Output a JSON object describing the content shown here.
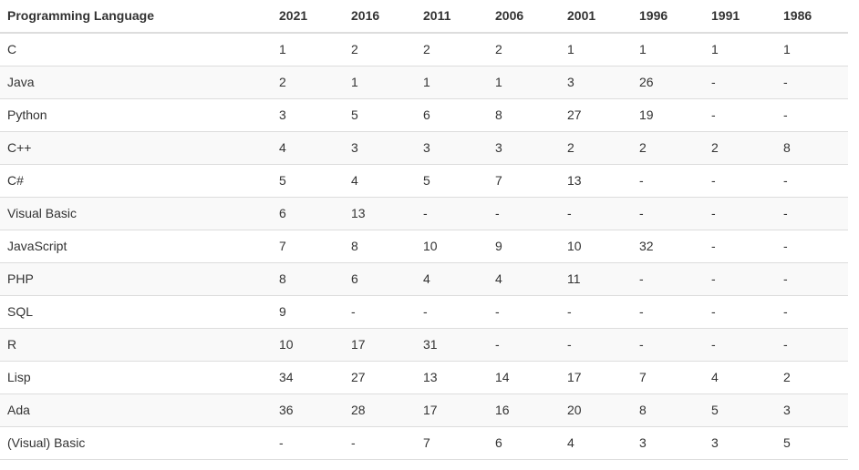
{
  "table": {
    "header": {
      "language_column": "Programming Language",
      "year_columns": [
        "2021",
        "2016",
        "2011",
        "2006",
        "2001",
        "1996",
        "1991",
        "1986"
      ]
    },
    "rows": [
      {
        "language": "C",
        "ranks": [
          "1",
          "2",
          "2",
          "2",
          "1",
          "1",
          "1",
          "1"
        ]
      },
      {
        "language": "Java",
        "ranks": [
          "2",
          "1",
          "1",
          "1",
          "3",
          "26",
          "-",
          "-"
        ]
      },
      {
        "language": "Python",
        "ranks": [
          "3",
          "5",
          "6",
          "8",
          "27",
          "19",
          "-",
          "-"
        ]
      },
      {
        "language": "C++",
        "ranks": [
          "4",
          "3",
          "3",
          "3",
          "2",
          "2",
          "2",
          "8"
        ]
      },
      {
        "language": "C#",
        "ranks": [
          "5",
          "4",
          "5",
          "7",
          "13",
          "-",
          "-",
          "-"
        ]
      },
      {
        "language": "Visual Basic",
        "ranks": [
          "6",
          "13",
          "-",
          "-",
          "-",
          "-",
          "-",
          "-"
        ]
      },
      {
        "language": "JavaScript",
        "ranks": [
          "7",
          "8",
          "10",
          "9",
          "10",
          "32",
          "-",
          "-"
        ]
      },
      {
        "language": "PHP",
        "ranks": [
          "8",
          "6",
          "4",
          "4",
          "11",
          "-",
          "-",
          "-"
        ]
      },
      {
        "language": "SQL",
        "ranks": [
          "9",
          "-",
          "-",
          "-",
          "-",
          "-",
          "-",
          "-"
        ]
      },
      {
        "language": "R",
        "ranks": [
          "10",
          "17",
          "31",
          "-",
          "-",
          "-",
          "-",
          "-"
        ]
      },
      {
        "language": "Lisp",
        "ranks": [
          "34",
          "27",
          "13",
          "14",
          "17",
          "7",
          "4",
          "2"
        ]
      },
      {
        "language": "Ada",
        "ranks": [
          "36",
          "28",
          "17",
          "16",
          "20",
          "8",
          "5",
          "3"
        ]
      },
      {
        "language": "(Visual) Basic",
        "ranks": [
          "-",
          "-",
          "7",
          "6",
          "4",
          "3",
          "3",
          "5"
        ]
      }
    ],
    "colors": {
      "text": "#333333",
      "border": "#dddddd",
      "stripe": "#f9f9f9",
      "background": "#ffffff"
    }
  }
}
